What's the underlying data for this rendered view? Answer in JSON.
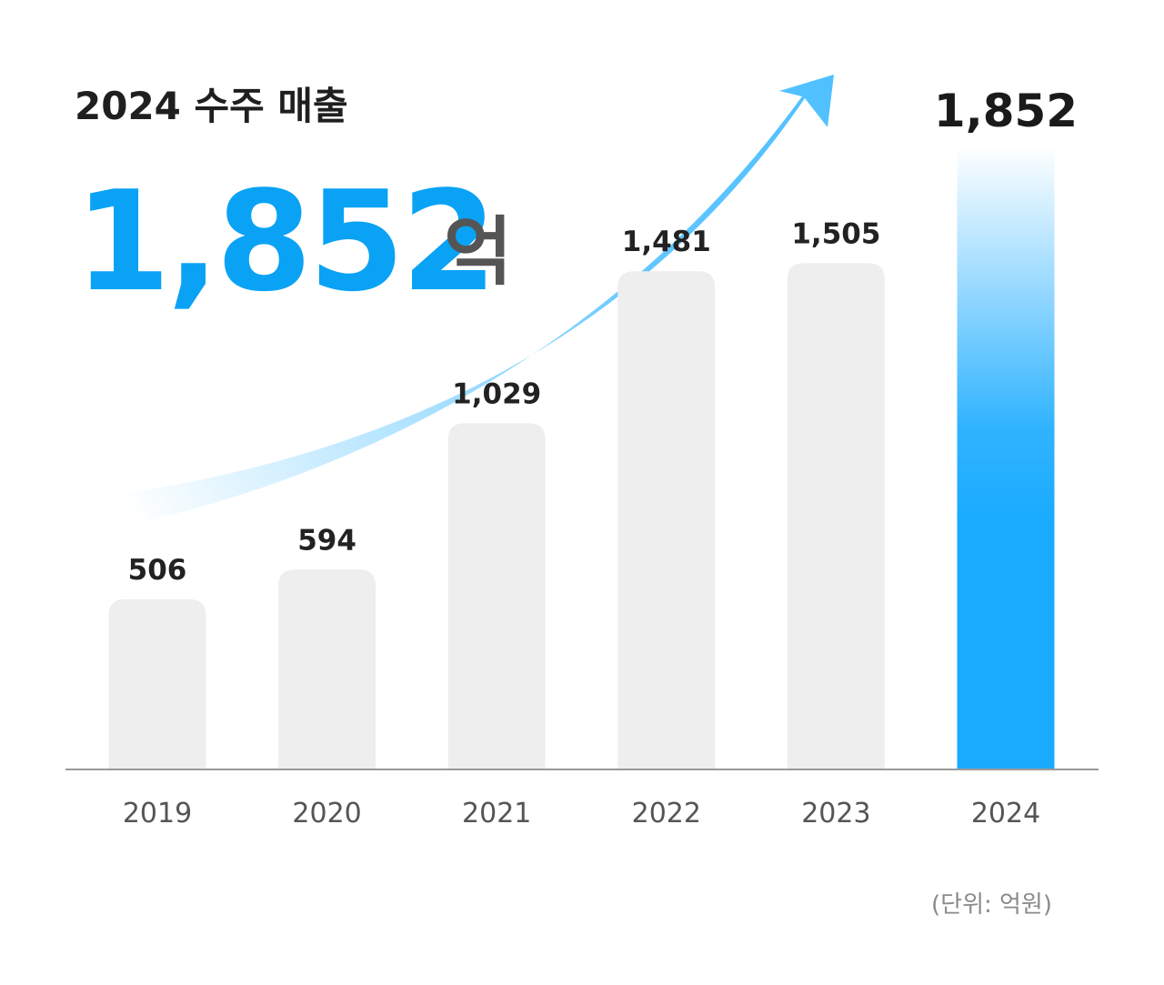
{
  "title": "2024 수주 매출",
  "headline": {
    "value": "1,852",
    "unit": "억"
  },
  "unit_note": "(단위: 억원)",
  "colors": {
    "highlight": "#1aabff",
    "bar": "#eeeeee",
    "headline": "#0aa2f5",
    "arrow": "#4fc0ff",
    "axis": "#999999"
  },
  "chart_data": {
    "type": "bar",
    "title": "2024 수주 매출",
    "xlabel": "",
    "ylabel": "",
    "categories": [
      "2019",
      "2020",
      "2021",
      "2022",
      "2023",
      "2024"
    ],
    "values": [
      506,
      594,
      1029,
      1481,
      1505,
      1852
    ],
    "value_labels": [
      "506",
      "594",
      "1,029",
      "1,481",
      "1,505",
      "1,852"
    ],
    "highlight_index": 5,
    "ylim": [
      0,
      2000
    ],
    "grid": false,
    "legend": "none",
    "annotation": "upward trend arrow"
  }
}
